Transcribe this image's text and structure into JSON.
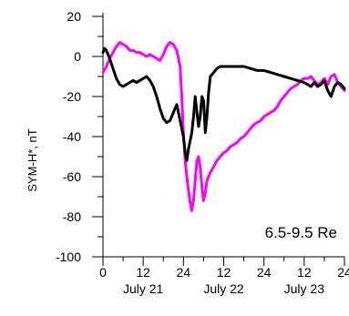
{
  "chart_data": {
    "type": "line",
    "ylabel": "SYM-H*, nT",
    "annotation": "6.5-9.5 Re",
    "xlim": [
      0,
      72
    ],
    "ylim": [
      -100,
      20
    ],
    "y_ticks": [
      20,
      0,
      -20,
      -40,
      -60,
      -80,
      -100
    ],
    "y_tick_labels": [
      "20",
      "0",
      "-20",
      "-40",
      "-60",
      "-80",
      "-100"
    ],
    "x_ticks": [
      0,
      12,
      24,
      36,
      48,
      60,
      72
    ],
    "x_tick_labels": [
      "0",
      "12",
      "24",
      "12",
      "24",
      "12",
      "24"
    ],
    "date_labels": [
      {
        "x": 12,
        "label": "July 21"
      },
      {
        "x": 36,
        "label": "July 22"
      },
      {
        "x": 60,
        "label": "July 23"
      }
    ],
    "colors": {
      "series_black": "#000000",
      "series_magenta": "#ff00ff"
    },
    "series": [
      {
        "color": "#000000",
        "x": [
          0,
          0.5,
          1,
          2,
          3,
          4,
          5,
          6,
          7,
          8,
          9,
          10,
          11,
          12,
          13,
          14,
          15,
          16,
          17,
          18,
          19,
          20,
          21,
          22,
          23,
          24,
          24.5,
          25,
          25.5,
          26,
          26.5,
          27,
          27.5,
          28,
          28.5,
          29,
          29.5,
          30,
          30.5,
          31,
          31.5,
          32,
          33,
          34,
          35,
          36,
          38,
          40,
          42,
          44,
          46,
          48,
          50,
          52,
          54,
          56,
          58,
          60,
          62,
          63,
          64,
          65,
          66,
          67,
          68,
          69,
          70,
          71,
          72
        ],
        "y": [
          2,
          4,
          3,
          -1,
          -6,
          -11,
          -14,
          -15,
          -14,
          -13,
          -12,
          -13,
          -12,
          -11,
          -10,
          -12,
          -15,
          -20,
          -26,
          -31,
          -33,
          -32,
          -28,
          -24,
          -32,
          -40,
          -48,
          -52,
          -46,
          -42,
          -38,
          -30,
          -20,
          -28,
          -35,
          -30,
          -20,
          -22,
          -38,
          -30,
          -18,
          -10,
          -8,
          -6,
          -5,
          -5,
          -5,
          -5,
          -5,
          -6,
          -7,
          -7,
          -8,
          -9,
          -10,
          -11,
          -12,
          -13,
          -15,
          -13,
          -15,
          -14,
          -12,
          -17,
          -20,
          -15,
          -13,
          -14,
          -16
        ]
      },
      {
        "color": "#ff00ff",
        "x": [
          0,
          1,
          2,
          3,
          4,
          5,
          6,
          7,
          8,
          9,
          10,
          11,
          12,
          13,
          14,
          15,
          16,
          17,
          18,
          19,
          20,
          21,
          22,
          23,
          23.5,
          24,
          24.5,
          25,
          25.5,
          26,
          26.5,
          27,
          27.5,
          28,
          28.5,
          29,
          29.5,
          30,
          30.5,
          31,
          31.5,
          32,
          33,
          34,
          35,
          36,
          37,
          38,
          39,
          40,
          41,
          42,
          43,
          44,
          45,
          46,
          47,
          48,
          49,
          50,
          51,
          52,
          53,
          54,
          55,
          56,
          57,
          58,
          59,
          60,
          61,
          62,
          63,
          64,
          65,
          66,
          67,
          68,
          69,
          70,
          71,
          72
        ],
        "y": [
          -8,
          -5,
          -1,
          2,
          5,
          7,
          6,
          5,
          3,
          3,
          2,
          2,
          1,
          0,
          1,
          0,
          -1,
          -2,
          1,
          5,
          7,
          6,
          3,
          -5,
          -20,
          -38,
          -52,
          -60,
          -67,
          -73,
          -77,
          -72,
          -62,
          -52,
          -50,
          -55,
          -65,
          -72,
          -68,
          -62,
          -60,
          -58,
          -55,
          -52,
          -50,
          -48,
          -47,
          -45,
          -44,
          -43,
          -41,
          -40,
          -38,
          -36,
          -34,
          -33,
          -32,
          -30,
          -29,
          -28,
          -27,
          -25,
          -22,
          -20,
          -18,
          -16,
          -15,
          -14,
          -12,
          -11,
          -11,
          -10,
          -12,
          -14,
          -13,
          -11,
          -14,
          -10,
          -9,
          -13,
          -15,
          -17
        ]
      }
    ]
  }
}
